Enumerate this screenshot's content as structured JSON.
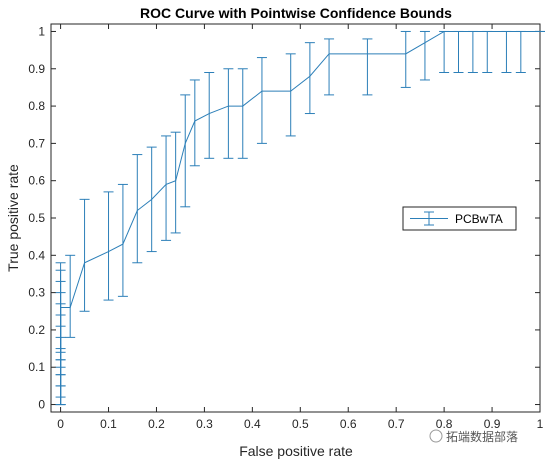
{
  "chart_data": {
    "type": "line",
    "title": "ROC Curve with Pointwise Confidence Bounds",
    "xlabel": "False positive rate",
    "ylabel": "True positive rate",
    "xlim": [
      -0.02,
      1.0
    ],
    "ylim": [
      -0.02,
      1.02
    ],
    "xticks": [
      0,
      0.1,
      0.2,
      0.3,
      0.4,
      0.5,
      0.6,
      0.7,
      0.8,
      0.9,
      1
    ],
    "yticks": [
      0,
      0.1,
      0.2,
      0.3,
      0.4,
      0.5,
      0.6,
      0.7,
      0.8,
      0.9,
      1
    ],
    "xtick_labels": [
      "0",
      "0.1",
      "0.2",
      "0.3",
      "0.4",
      "0.5",
      "0.6",
      "0.7",
      "0.8",
      "0.9",
      "1"
    ],
    "ytick_labels": [
      "0",
      "0.1",
      "0.2",
      "0.3",
      "0.4",
      "0.5",
      "0.6",
      "0.7",
      "0.8",
      "0.9",
      "1"
    ],
    "grid": false,
    "legend_position": "right",
    "colors": {
      "series": "#2c7fb8"
    },
    "series": [
      {
        "name": "PCBwTA",
        "x": [
          0,
          0,
          0,
          0,
          0,
          0,
          0,
          0,
          0,
          0,
          0,
          0,
          0.02,
          0.05,
          0.1,
          0.13,
          0.16,
          0.19,
          0.22,
          0.24,
          0.26,
          0.28,
          0.31,
          0.35,
          0.38,
          0.42,
          0.48,
          0.52,
          0.56,
          0.64,
          0.72,
          0.76,
          0.8,
          0.83,
          0.86,
          0.89,
          0.93,
          0.96,
          1.0
        ],
        "y": [
          0.01,
          0.03,
          0.06,
          0.08,
          0.1,
          0.12,
          0.14,
          0.17,
          0.2,
          0.22,
          0.24,
          0.26,
          0.26,
          0.38,
          0.41,
          0.43,
          0.52,
          0.55,
          0.59,
          0.6,
          0.7,
          0.76,
          0.78,
          0.8,
          0.8,
          0.84,
          0.84,
          0.88,
          0.94,
          0.94,
          0.94,
          0.97,
          1.0,
          1.0,
          1.0,
          1.0,
          1.0,
          1.0,
          1.0
        ],
        "lower": [
          0,
          0,
          0,
          0,
          0,
          0,
          0.02,
          0.05,
          0.08,
          0.1,
          0.12,
          0.14,
          0.18,
          0.25,
          0.28,
          0.29,
          0.38,
          0.41,
          0.44,
          0.46,
          0.53,
          0.64,
          0.66,
          0.66,
          0.66,
          0.7,
          0.72,
          0.78,
          0.83,
          0.83,
          0.85,
          0.87,
          0.89,
          0.89,
          0.89,
          0.89,
          0.89,
          0.89,
          1.0
        ],
        "upper": [
          0.05,
          0.08,
          0.12,
          0.15,
          0.18,
          0.21,
          0.24,
          0.27,
          0.3,
          0.33,
          0.36,
          0.38,
          0.4,
          0.55,
          0.57,
          0.59,
          0.67,
          0.69,
          0.72,
          0.73,
          0.83,
          0.87,
          0.89,
          0.9,
          0.9,
          0.93,
          0.94,
          0.97,
          0.98,
          0.98,
          1.0,
          1.0,
          1.0,
          1.0,
          1.0,
          1.0,
          1.0,
          1.0,
          1.0
        ]
      }
    ],
    "watermark_text": "拓端数据部落"
  }
}
